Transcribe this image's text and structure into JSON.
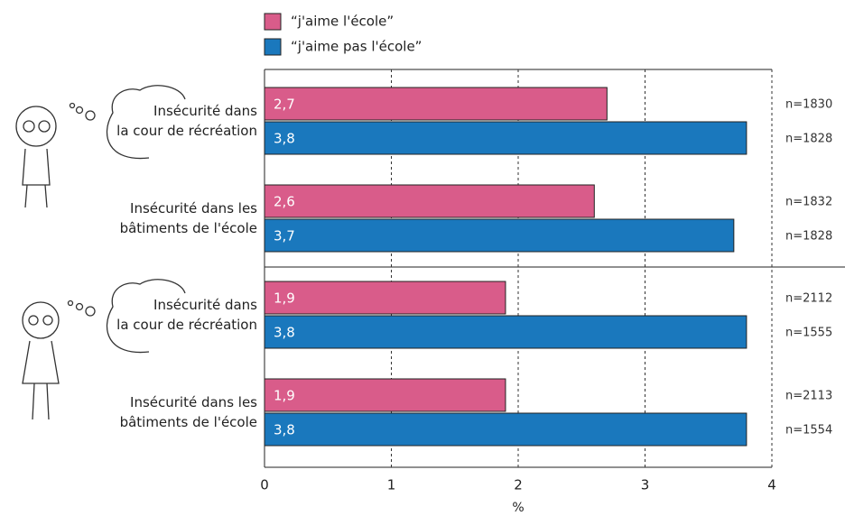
{
  "chart_data": {
    "type": "hbar",
    "categories": [
      "Insécurité dans\nla cour de récréation",
      "Insécurité dans les\nbâtiments de l'école",
      "Insécurité dans\nla cour de récréation",
      "Insécurité dans les\nbâtiments de l'école"
    ],
    "series": [
      {
        "name": "“j'aime l'école”",
        "color": "#d95c8a",
        "values": [
          2.7,
          2.6,
          1.9,
          1.9
        ],
        "value_labels": [
          "2,7",
          "2,6",
          "1,9",
          "1,9"
        ],
        "n_labels": [
          "n=1830",
          "n=1832",
          "n=2112",
          "n=2113"
        ]
      },
      {
        "name": "“j'aime pas l'école”",
        "color": "#1a78bd",
        "values": [
          3.8,
          3.7,
          3.8,
          3.8
        ],
        "value_labels": [
          "3,8",
          "3,7",
          "3,8",
          "3,8"
        ],
        "n_labels": [
          "n=1828",
          "n=1828",
          "n=1555",
          "n=1554"
        ]
      }
    ],
    "xlabel": "%",
    "xlim": [
      0,
      4
    ],
    "xticks": [
      0,
      1,
      2,
      3,
      4
    ],
    "grid": true
  }
}
